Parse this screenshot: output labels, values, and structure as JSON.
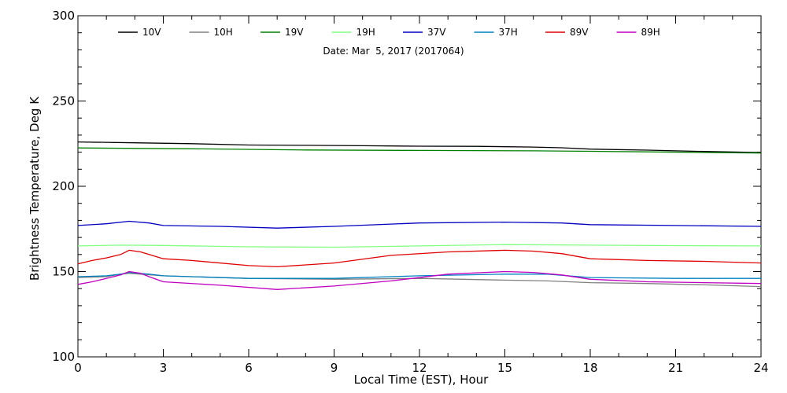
{
  "chart_data": {
    "type": "line",
    "title": "",
    "subtitle": "Date: Mar  5, 2017 (2017064)",
    "xlabel": "Local Time (EST), Hour",
    "ylabel": "Brightness Temperature, Deg K",
    "xlim": [
      0,
      24
    ],
    "ylim": [
      100,
      300
    ],
    "xticks": [
      0,
      3,
      6,
      9,
      12,
      15,
      18,
      21,
      24
    ],
    "yticks": [
      100,
      150,
      200,
      250,
      300
    ],
    "xtick_labels": [
      "0",
      "3",
      "6",
      "9",
      "12",
      "15",
      "18",
      "21",
      "24"
    ],
    "ytick_labels": [
      "100",
      "150",
      "200",
      "250",
      "300"
    ],
    "grid": false,
    "legend_position": "top",
    "series": [
      {
        "name": "10V",
        "color": "#000000",
        "x": [
          0,
          2,
          4,
          6,
          8,
          10,
          12,
          14,
          16,
          17,
          18,
          20,
          22,
          24
        ],
        "y": [
          226,
          225.5,
          225,
          224.2,
          224,
          223.8,
          223.5,
          223.4,
          223,
          222.6,
          221.8,
          221.2,
          220.4,
          219.8
        ]
      },
      {
        "name": "10H",
        "color": "#808080",
        "x": [
          0,
          1,
          1.5,
          1.8,
          2.2,
          3,
          6,
          9,
          12,
          15,
          16.5,
          18,
          20,
          22,
          24
        ],
        "y": [
          146.5,
          147,
          148.5,
          149,
          148.5,
          147.5,
          146,
          145.5,
          146,
          145,
          144.5,
          143.5,
          143,
          142.2,
          141.2
        ]
      },
      {
        "name": "19V",
        "color": "#008000",
        "x": [
          0,
          4,
          8,
          12,
          16,
          18,
          20,
          22,
          24
        ],
        "y": [
          222.5,
          222,
          221.3,
          221,
          220.8,
          220.5,
          220.2,
          219.8,
          219.5
        ]
      },
      {
        "name": "19H",
        "color": "#80ff80",
        "x": [
          0,
          1.5,
          3,
          6,
          9,
          12,
          15,
          18,
          21,
          24
        ],
        "y": [
          165,
          165.5,
          165.3,
          164.5,
          164.3,
          165,
          165.8,
          165.5,
          165.2,
          165
        ]
      },
      {
        "name": "37V",
        "color": "#0000c0",
        "x": [
          0,
          1,
          1.8,
          2.5,
          3,
          5,
          7,
          9,
          12,
          15,
          17,
          18,
          21,
          24
        ],
        "y": [
          177,
          178,
          179.5,
          178.5,
          177,
          176.5,
          175.5,
          176.5,
          178.5,
          179,
          178.5,
          177.5,
          177,
          176.5
        ]
      },
      {
        "name": "37H",
        "color": "#0080c0",
        "x": [
          0,
          1,
          1.5,
          1.8,
          2.5,
          3,
          6,
          9,
          12,
          15,
          16.5,
          18,
          21,
          24
        ],
        "y": [
          147,
          147.5,
          148.5,
          149.5,
          148.5,
          147.5,
          146,
          146,
          147.5,
          148.5,
          148.5,
          146.5,
          146,
          146
        ]
      },
      {
        "name": "89V",
        "color": "#e00000",
        "x": [
          0,
          0.5,
          1,
          1.5,
          1.8,
          2.2,
          2.5,
          3,
          4,
          6,
          7,
          9,
          11,
          13,
          15,
          16,
          17,
          18,
          20,
          22,
          24
        ],
        "y": [
          154.5,
          156.5,
          158,
          160,
          162.5,
          161.5,
          160,
          157.5,
          156.5,
          153.5,
          152.8,
          155,
          159.5,
          161.5,
          162.5,
          162,
          160.5,
          157.5,
          156.5,
          156,
          155
        ]
      },
      {
        "name": "89H",
        "color": "#c000c0",
        "x": [
          0,
          0.5,
          1,
          1.5,
          1.8,
          2.2,
          2.5,
          3,
          5,
          7,
          9,
          11,
          13,
          15,
          16,
          17,
          18,
          20,
          22,
          24
        ],
        "y": [
          142.5,
          144,
          146,
          148,
          150,
          149,
          147,
          144,
          142,
          139.5,
          141.5,
          144.5,
          148.5,
          150,
          149.5,
          148,
          145.5,
          144,
          143.5,
          143
        ]
      }
    ]
  }
}
